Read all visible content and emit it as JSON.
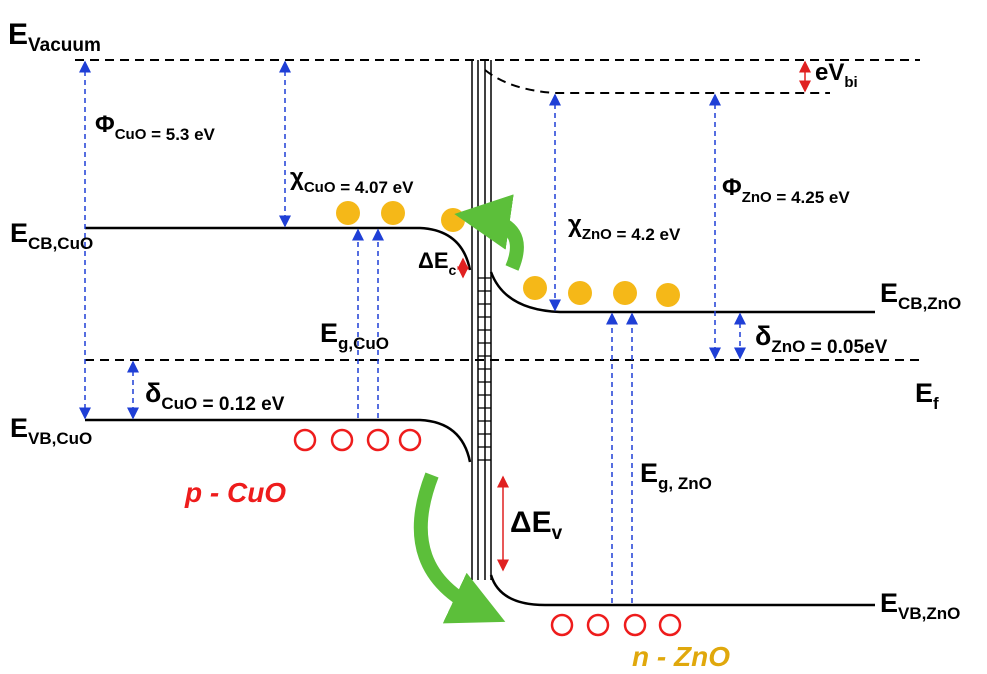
{
  "labels": [
    {
      "main": "E",
      "sub": "Vacuum"
    },
    {
      "main": "Φ",
      "sub": "CuO",
      "rest": " = 5.3 eV"
    },
    {
      "main": "χ",
      "sub": "CuO",
      "rest": " = 4.07 eV"
    },
    {
      "main": "E",
      "sub": "CB,CuO"
    },
    {
      "main": "ΔE",
      "sub": "c"
    },
    {
      "main": "E",
      "sub": "g,CuO"
    },
    {
      "main": "δ",
      "sub": "CuO",
      "rest": " = 0.12 eV"
    },
    {
      "main": "E",
      "sub": "VB,CuO"
    },
    {
      "main": "p - CuO"
    },
    {
      "main": "eV",
      "sub": "bi"
    },
    {
      "main": "χ",
      "sub": "ZnO",
      "rest": " = 4.2 eV"
    },
    {
      "main": "Φ",
      "sub": "ZnO",
      "rest": " = 4.25 eV"
    },
    {
      "main": "E",
      "sub": "CB,ZnO"
    },
    {
      "main": "δ",
      "sub": "ZnO",
      "rest": " = 0.05eV"
    },
    {
      "main": "E",
      "sub": "f"
    },
    {
      "main": "E",
      "sub": "g, ZnO"
    },
    {
      "main": "ΔE",
      "sub": "v"
    },
    {
      "main": "E",
      "sub": "VB,ZnO"
    },
    {
      "main": "n - ZnO"
    }
  ]
}
